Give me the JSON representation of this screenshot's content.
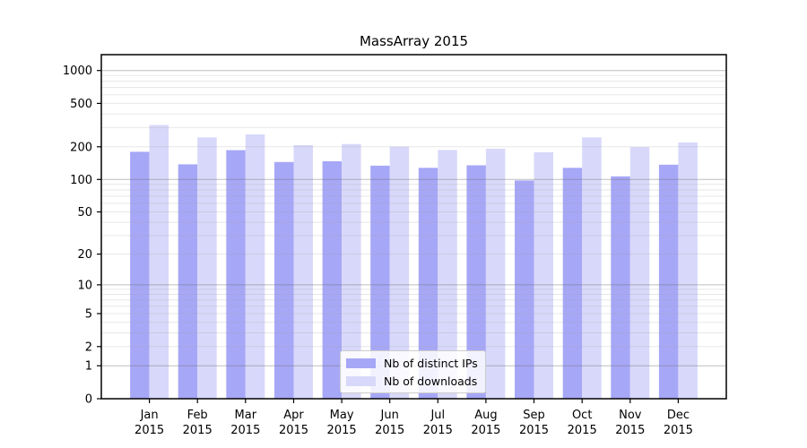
{
  "chart_data": {
    "type": "bar",
    "title": "MassArray 2015",
    "categories": [
      "Jan",
      "Feb",
      "Mar",
      "Apr",
      "May",
      "Jun",
      "Jul",
      "Aug",
      "Sep",
      "Oct",
      "Nov",
      "Dec"
    ],
    "x_year": "2015",
    "series": [
      {
        "name": "Nb of distinct IPs",
        "color": "#a7a7f7",
        "values": [
          180,
          138,
          186,
          145,
          147,
          134,
          128,
          135,
          98,
          128,
          107,
          137
        ]
      },
      {
        "name": "Nb of downloads",
        "color": "#d8d8fa",
        "values": [
          317,
          244,
          260,
          207,
          212,
          201,
          187,
          192,
          178,
          244,
          199,
          219
        ]
      }
    ],
    "y_scale": "log1p",
    "y_ticks": [
      0,
      1,
      2,
      5,
      10,
      20,
      50,
      100,
      200,
      500,
      1000
    ],
    "ylim": [
      0,
      1400
    ],
    "grid": true,
    "grid_major_at": [
      1,
      10,
      100,
      1000
    ],
    "legend_position": "lower center",
    "colors": {
      "axis": "#000000",
      "grid_major": "#b4b4b4",
      "grid_minor": "#e6e6e6",
      "background": "#ffffff"
    }
  }
}
